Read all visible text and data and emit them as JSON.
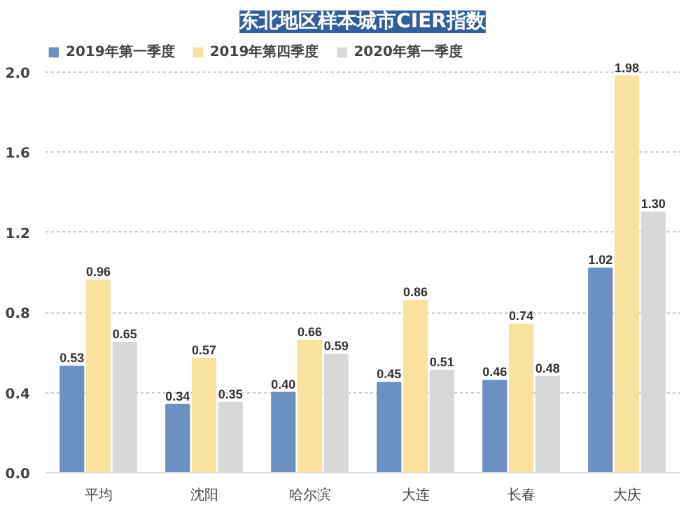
{
  "chart_data": {
    "type": "bar",
    "title": "东北地区样本城市CIER指数",
    "categories": [
      "平均",
      "沈阳",
      "哈尔滨",
      "大连",
      "长春",
      "大庆"
    ],
    "series": [
      {
        "name": "2019年第一季度",
        "color": "#6b90c2",
        "values": [
          0.53,
          0.34,
          0.4,
          0.45,
          0.46,
          1.02
        ],
        "value_labels": [
          "0.53",
          "0.34",
          "0.40",
          "0.45",
          "0.46",
          "1.02"
        ]
      },
      {
        "name": "2019年第四季度",
        "color": "#f8e29c",
        "values": [
          0.96,
          0.57,
          0.66,
          0.86,
          0.74,
          1.98
        ],
        "value_labels": [
          "0.96",
          "0.57",
          "0.66",
          "0.86",
          "0.74",
          "1.98"
        ]
      },
      {
        "name": "2020年第一季度",
        "color": "#d7d8da",
        "values": [
          0.65,
          0.35,
          0.59,
          0.51,
          0.48,
          1.3
        ],
        "value_labels": [
          "0.65",
          "0.35",
          "0.59",
          "0.51",
          "0.48",
          "1.30"
        ]
      }
    ],
    "ylim": [
      0,
      2.0
    ],
    "yticks": [
      {
        "value": 0,
        "label": "0.0"
      },
      {
        "value": 0.4,
        "label": "0.4"
      },
      {
        "value": 0.8,
        "label": "0.8"
      },
      {
        "value": 1.2,
        "label": "1.2"
      },
      {
        "value": 1.6,
        "label": "1.6"
      },
      {
        "value": 2.0,
        "label": "2.0"
      }
    ],
    "grid": "y",
    "legend": "top left"
  }
}
